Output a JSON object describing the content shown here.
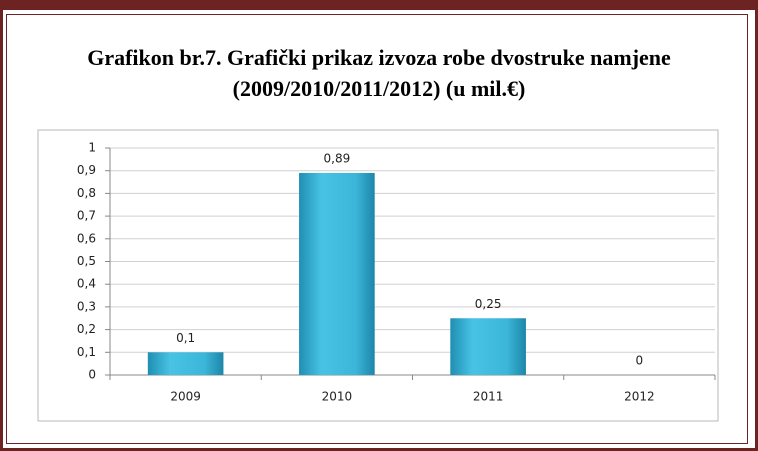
{
  "chart_data": {
    "type": "bar",
    "title": "Grafikon br.7. Grafički prikaz izvoza robe dvostruke namjene (2009/2010/2011/2012) (u mil.€)",
    "categories": [
      "2009",
      "2010",
      "2011",
      "2012"
    ],
    "values": [
      0.1,
      0.89,
      0.25,
      0
    ],
    "value_labels": [
      "0,1",
      "0,89",
      "0,25",
      "0"
    ],
    "color": "#3bb6d9",
    "ylim": [
      0,
      1
    ],
    "yticks": [
      0,
      {
        "value": 0.1,
        "label": "0,1"
      },
      {
        "value": 0.2,
        "label": "0,2"
      },
      {
        "value": 0.3,
        "label": "0,3"
      },
      {
        "value": 0.4,
        "label": "0,4"
      },
      {
        "value": 0.5,
        "label": "0,5"
      },
      {
        "value": 0.6,
        "label": "0,6"
      },
      {
        "value": 0.7,
        "label": "0,7"
      },
      {
        "value": 0.8,
        "label": "0,8"
      },
      {
        "value": 0.9,
        "label": "0,9"
      },
      1
    ],
    "grid": true
  }
}
